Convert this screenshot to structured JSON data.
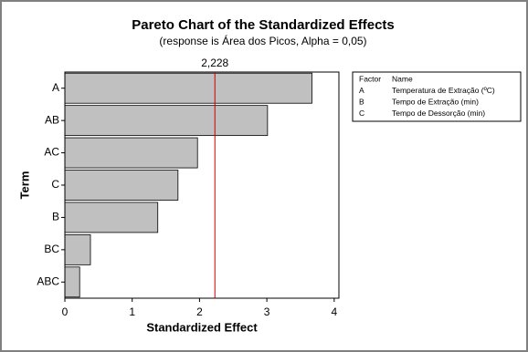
{
  "chart_data": {
    "type": "bar",
    "orientation": "horizontal",
    "title": "Pareto Chart of the Standardized Effects",
    "subtitle": "(response is Área dos Picos, Alpha = 0,05)",
    "x_label": "Standardized Effect",
    "y_label": "Term",
    "categories": [
      "A",
      "AB",
      "AC",
      "C",
      "B",
      "BC",
      "ABC"
    ],
    "values": [
      3.67,
      3.01,
      1.97,
      1.68,
      1.38,
      0.38,
      0.22
    ],
    "color": "#c0c0c0",
    "xlim": [
      0,
      4.07
    ],
    "xticks": [
      0,
      1,
      2,
      3,
      4
    ],
    "reference_line": {
      "value": 2.228,
      "label": "2,228",
      "color": "#c00000"
    },
    "legend_table": {
      "header": [
        "Factor",
        "Name"
      ],
      "rows": [
        [
          "A",
          "Temperatura de Extração (ºC)"
        ],
        [
          "B",
          "Tempo de Extração (min)"
        ],
        [
          "C",
          "Tempo de Dessorção (min)"
        ]
      ]
    }
  }
}
